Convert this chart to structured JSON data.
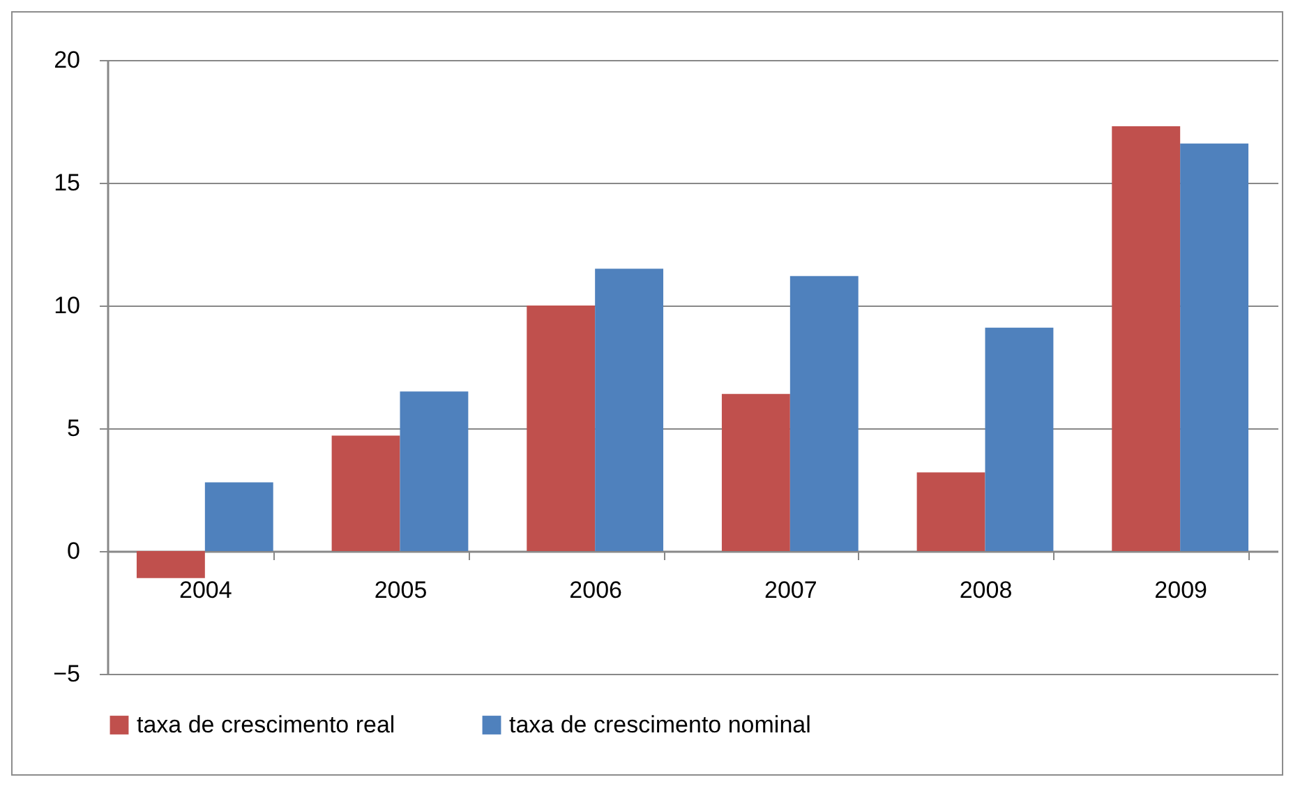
{
  "chart_data": {
    "type": "bar",
    "categories": [
      "2004",
      "2005",
      "2006",
      "2007",
      "2008",
      "2009"
    ],
    "series": [
      {
        "name": "taxa de crescimento real",
        "color": "#c0504d",
        "values": [
          -1.1,
          4.7,
          10.0,
          6.4,
          3.2,
          17.3
        ]
      },
      {
        "name": "taxa de crescimento nominal",
        "color": "#4f81bd",
        "values": [
          2.8,
          6.5,
          11.5,
          11.2,
          9.1,
          16.6
        ]
      }
    ],
    "ylim": [
      -5,
      20
    ],
    "yticks": [
      -5,
      0,
      5,
      10,
      15,
      20
    ],
    "grid": "y",
    "legend": "bottom"
  }
}
